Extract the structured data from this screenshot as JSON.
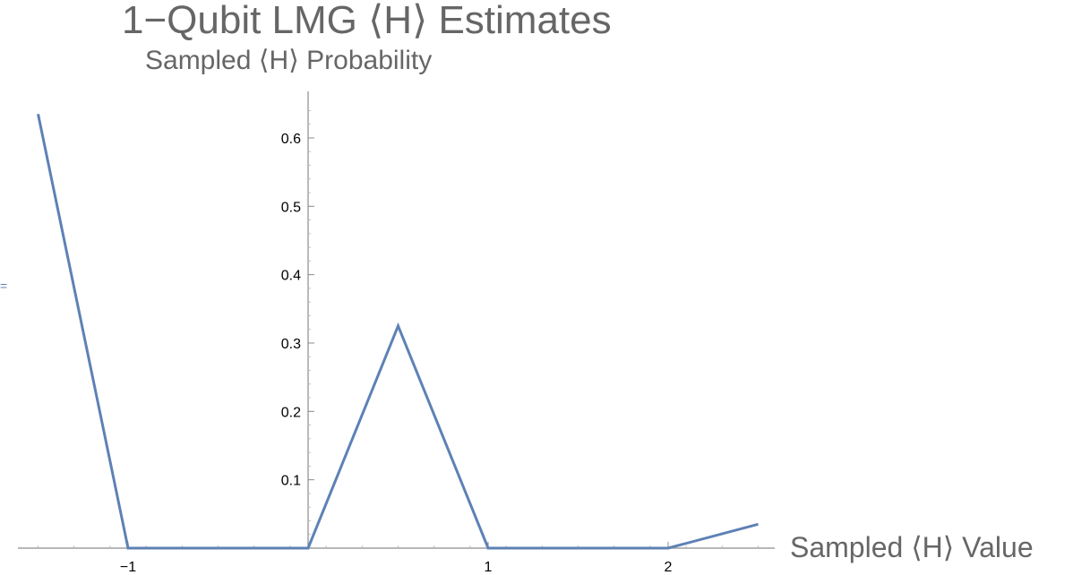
{
  "title": "1−Qubit LMG ⟨H⟩ Estimates",
  "subtitle": "Sampled ⟨H⟩ Probability",
  "chart_data": {
    "type": "line",
    "title": "1−Qubit LMG ⟨H⟩ Estimates",
    "xlabel": "Sampled ⟨H⟩ Value",
    "ylabel": "",
    "xlim": [
      -1.5,
      2.5
    ],
    "ylim": [
      0,
      0.67
    ],
    "xticks": [
      -1,
      1,
      2
    ],
    "xtick_labels": [
      "−1",
      "1",
      "2"
    ],
    "yticks": [
      0.1,
      0.2,
      0.3,
      0.4,
      0.5,
      0.6
    ],
    "ytick_labels": [
      "0.1",
      "0.2",
      "0.3",
      "0.4",
      "0.5",
      "0.6"
    ],
    "grid": false,
    "series": [
      {
        "color": "#5e81b5",
        "x": [
          -1.5,
          -1,
          0,
          0.5,
          1,
          2,
          2.5
        ],
        "y": [
          0.635,
          0,
          0,
          0.325,
          0,
          0,
          0.035
        ]
      }
    ]
  }
}
